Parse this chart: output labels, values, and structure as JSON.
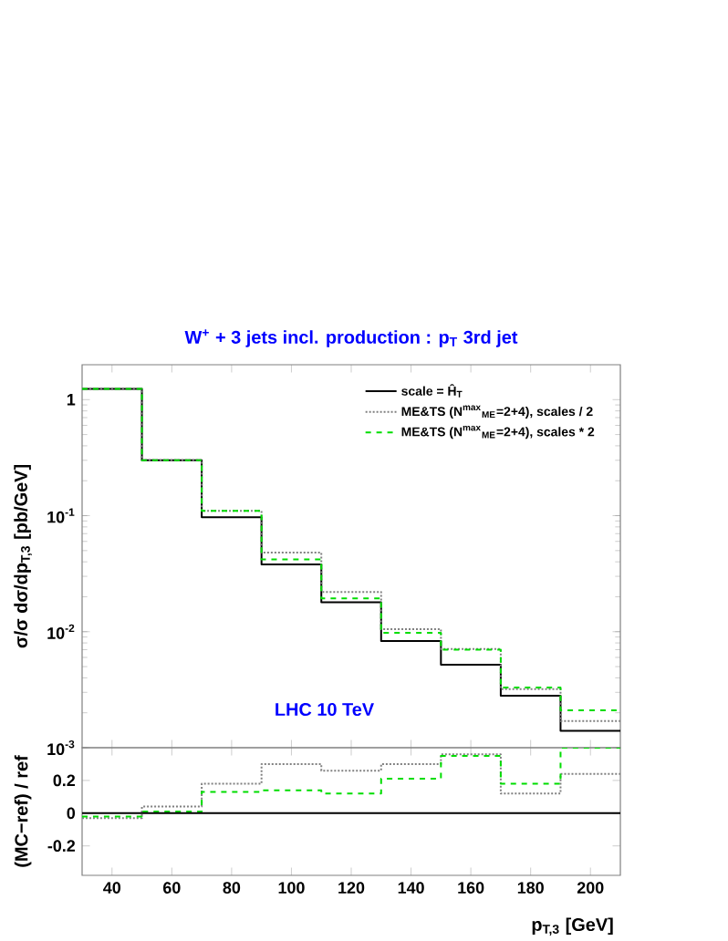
{
  "chart_data": [
    {
      "type": "histogram",
      "title": "W$^{+}$ + 3 jets incl. production : p$_{T}$ 3rd jet",
      "ylabel": "σ/σ dσ/dp$_{T,3}$  [pb/GeV]",
      "bins": [
        30,
        50,
        70,
        90,
        110,
        130,
        150,
        170,
        190,
        210
      ],
      "series": [
        {
          "name": "scale = Ĥ$_{T}$",
          "color": "#000000",
          "line_style": "solid",
          "values": [
            1.24,
            0.3,
            0.097,
            0.038,
            0.0179,
            0.0083,
            0.0052,
            0.0028,
            0.0014
          ]
        },
        {
          "name": "ME&TS (N$^{max}$$_{ME}$=2+4), scales / 2",
          "color": "#808080",
          "line_style": "dotted",
          "values": [
            1.24,
            0.3,
            0.11,
            0.048,
            0.022,
            0.0105,
            0.0071,
            0.0032,
            0.0017
          ]
        },
        {
          "name": "ME&TS (N$^{max}$$_{ME}$=2+4), scales * 2",
          "color": "#00dd00",
          "line_style": "dashed",
          "values": [
            1.24,
            0.3,
            0.11,
            0.042,
            0.0194,
            0.0098,
            0.007,
            0.0033,
            0.0021
          ]
        }
      ],
      "log": "y",
      "xlim": [
        30,
        210
      ],
      "ylim": [
        0.001,
        2
      ],
      "xticks": [
        40,
        60,
        80,
        100,
        120,
        140,
        160,
        180,
        200
      ],
      "yticks": [
        {
          "value": 0.001,
          "label": "10$^{-3}$"
        },
        {
          "value": 0.01,
          "label": "10$^{-2}$"
        },
        {
          "value": 0.1,
          "label": "10$^{-1}$"
        },
        1
      ],
      "tick_labels": "y",
      "legend": "top right",
      "annotations": [
        "LHC 10 TeV"
      ]
    },
    {
      "type": "histogram",
      "xlabel": "p$_{T,3}$  [GeV]",
      "ylabel": "(MC−ref) / ref",
      "bins": [
        30,
        50,
        70,
        90,
        110,
        130,
        150,
        170,
        190,
        210
      ],
      "series": [
        {
          "color": "#808080",
          "line_style": "dotted",
          "values": [
            -0.03,
            0.04,
            0.18,
            0.3,
            0.26,
            0.3,
            0.36,
            0.12,
            0.24
          ]
        },
        {
          "color": "#00dd00",
          "line_style": "dashed",
          "values": [
            -0.02,
            0.01,
            0.13,
            0.14,
            0.12,
            0.21,
            0.35,
            0.18,
            0.4
          ]
        }
      ],
      "xlim": [
        30,
        210
      ],
      "ylim": [
        -0.38,
        0.4
      ],
      "xticks": [
        40,
        60,
        80,
        100,
        120,
        140,
        160,
        180,
        200
      ],
      "yticks": [
        -0.2,
        0,
        0.2
      ],
      "ref_lines": [
        {
          "axis": "y",
          "value": 0,
          "color": "#000000"
        }
      ]
    }
  ]
}
